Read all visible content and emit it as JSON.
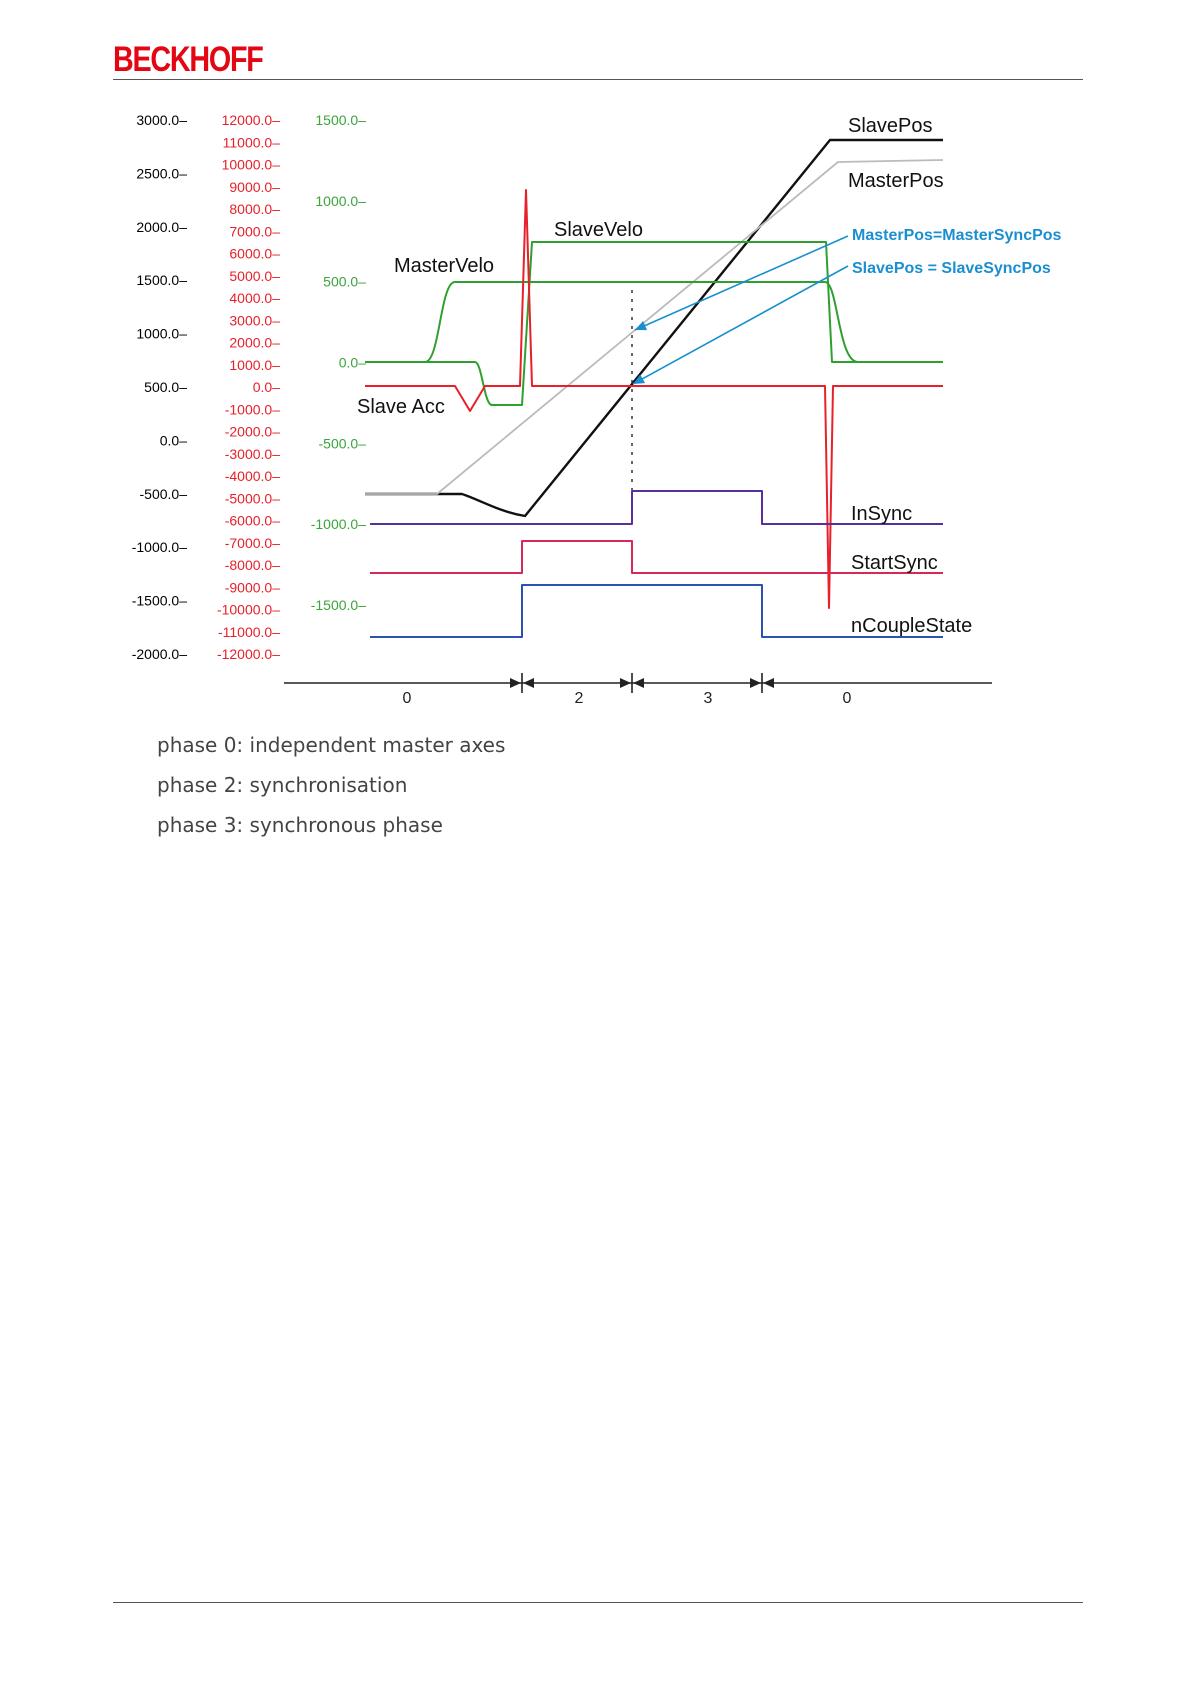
{
  "header": {
    "brand": "BECKHOFF"
  },
  "chart_data": {
    "type": "line",
    "axes": [
      {
        "color": "#000000",
        "range": [
          -2000,
          3000
        ],
        "ticks": [
          "3000.0",
          "2500.0",
          "2000.0",
          "1500.0",
          "1000.0",
          "500.0",
          "0.0",
          "-500.0",
          "-1000.0",
          "-1500.0",
          "-2000.0"
        ]
      },
      {
        "color": "#e8202a",
        "range": [
          -12000,
          12000
        ],
        "ticks": [
          "12000.0",
          "11000.0",
          "10000.0",
          "9000.0",
          "8000.0",
          "7000.0",
          "6000.0",
          "5000.0",
          "4000.0",
          "3000.0",
          "2000.0",
          "1000.0",
          "0.0",
          "-1000.0",
          "-2000.0",
          "-3000.0",
          "-4000.0",
          "-5000.0",
          "-6000.0",
          "-7000.0",
          "-8000.0",
          "-9000.0",
          "-10000.0",
          "-11000.0",
          "-12000.0"
        ]
      },
      {
        "color": "#3aa53a",
        "range": [
          -1500,
          1500
        ],
        "ticks": [
          "1500.0",
          "1000.0",
          "500.0",
          "0.0",
          "-500.0",
          "-1000.0",
          "-1500.0"
        ]
      }
    ],
    "series": [
      {
        "name": "SlavePos",
        "color": "#111111"
      },
      {
        "name": "MasterPos",
        "color": "#bbbbbb"
      },
      {
        "name": "SlaveVelo",
        "color": "#2fa02f"
      },
      {
        "name": "MasterVelo",
        "color": "#2fa02f"
      },
      {
        "name": "Slave Acc",
        "color": "#e8202a"
      },
      {
        "name": "InSync",
        "color": "#5a2f9a"
      },
      {
        "name": "StartSync",
        "color": "#d8285a"
      },
      {
        "name": "nCoupleState",
        "color": "#2a52b0"
      }
    ],
    "annotations": [
      {
        "text": "MasterPos=MasterSyncPos",
        "color": "#1a8fd0"
      },
      {
        "text": "SlavePos = SlaveSyncPos",
        "color": "#1a8fd0"
      }
    ],
    "phases": [
      "0",
      "2",
      "3",
      "0"
    ]
  },
  "legend": [
    "phase 0: independent master axes",
    "phase 2: synchronisation",
    "phase 3: synchronous phase"
  ]
}
